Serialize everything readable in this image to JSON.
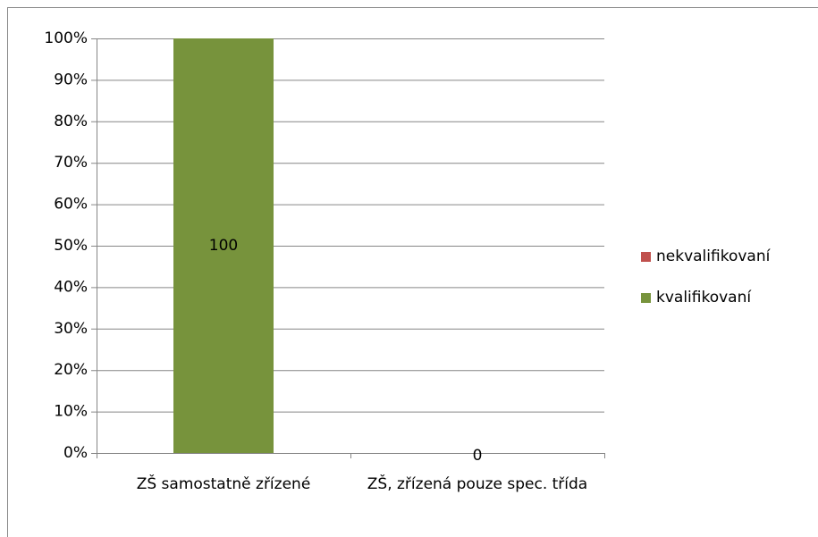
{
  "chart_data": {
    "type": "stacked_bar",
    "categories": [
      "ZŠ samostatně zřízené",
      "ZŠ, zřízená pouze spec. třída"
    ],
    "series": [
      {
        "name": "kvalifikovaní",
        "color": "#77933c",
        "values": [
          100,
          0
        ],
        "data_labels": true
      },
      {
        "name": "nekvalifikovaní",
        "color": "#c0504d",
        "values": [
          0,
          0
        ],
        "data_labels": false
      }
    ],
    "ylim": [
      0,
      100
    ],
    "yticks": [
      {
        "value": 0,
        "label": "0%"
      },
      {
        "value": 10,
        "label": "10%"
      },
      {
        "value": 20,
        "label": "20%"
      },
      {
        "value": 30,
        "label": "30%"
      },
      {
        "value": 40,
        "label": "40%"
      },
      {
        "value": 50,
        "label": "50%"
      },
      {
        "value": 60,
        "label": "60%"
      },
      {
        "value": 70,
        "label": "70%"
      },
      {
        "value": 80,
        "label": "80%"
      },
      {
        "value": 90,
        "label": "90%"
      },
      {
        "value": 100,
        "label": "100%"
      }
    ],
    "grid": true,
    "legend": "right"
  }
}
